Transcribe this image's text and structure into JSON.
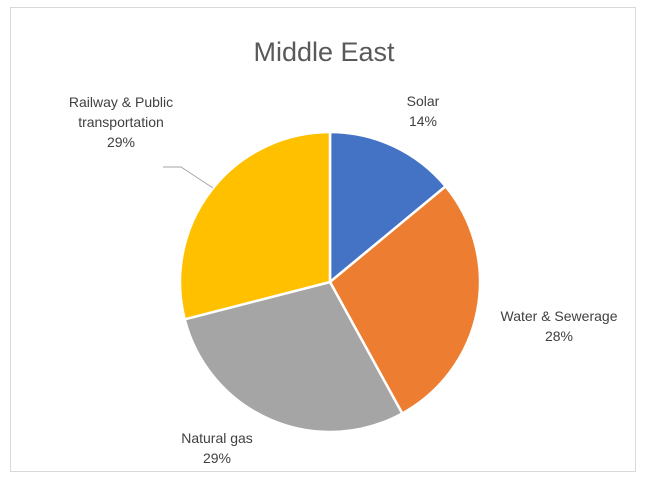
{
  "chart_data": {
    "type": "pie",
    "title": "Middle East",
    "slices": [
      {
        "label_lines": [
          "Solar"
        ],
        "percent_label": "14%",
        "value": 14,
        "color": "#4472C4"
      },
      {
        "label_lines": [
          "Water & Sewerage"
        ],
        "percent_label": "28%",
        "value": 28,
        "color": "#ED7D31"
      },
      {
        "label_lines": [
          "Natural gas"
        ],
        "percent_label": "29%",
        "value": 29,
        "color": "#A5A5A5"
      },
      {
        "label_lines": [
          "Railway & Public",
          "transportation"
        ],
        "percent_label": "29%",
        "value": 29,
        "color": "#FFC000"
      }
    ]
  }
}
